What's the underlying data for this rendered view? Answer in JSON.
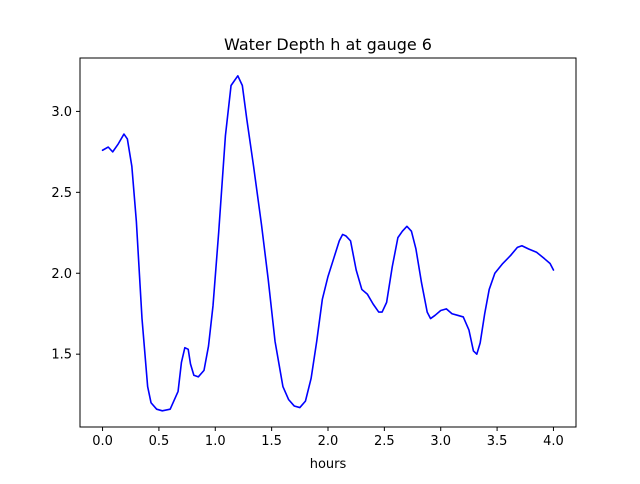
{
  "chart_data": {
    "type": "line",
    "title": "Water Depth h at gauge 6",
    "xlabel": "hours",
    "ylabel": "",
    "xlim": [
      -0.2,
      4.2
    ],
    "ylim": [
      1.05,
      3.33
    ],
    "xticks": [
      0.0,
      0.5,
      1.0,
      1.5,
      2.0,
      2.5,
      3.0,
      3.5,
      4.0
    ],
    "xtick_labels": [
      "0.0",
      "0.5",
      "1.0",
      "1.5",
      "2.0",
      "2.5",
      "3.0",
      "3.5",
      "4.0"
    ],
    "yticks": [
      1.5,
      2.0,
      2.5,
      3.0
    ],
    "ytick_labels": [
      "1.5",
      "2.0",
      "2.5",
      "3.0"
    ],
    "grid": false,
    "series": [
      {
        "color": "#0000ff",
        "x": [
          0.0,
          0.05,
          0.09,
          0.14,
          0.19,
          0.22,
          0.26,
          0.3,
          0.35,
          0.4,
          0.43,
          0.48,
          0.53,
          0.6,
          0.67,
          0.7,
          0.73,
          0.76,
          0.78,
          0.81,
          0.85,
          0.9,
          0.94,
          0.98,
          1.03,
          1.09,
          1.14,
          1.2,
          1.24,
          1.28,
          1.34,
          1.41,
          1.47,
          1.53,
          1.6,
          1.65,
          1.7,
          1.75,
          1.8,
          1.85,
          1.9,
          1.95,
          2.0,
          2.05,
          2.1,
          2.13,
          2.16,
          2.2,
          2.25,
          2.3,
          2.35,
          2.4,
          2.45,
          2.48,
          2.52,
          2.57,
          2.62,
          2.66,
          2.7,
          2.74,
          2.78,
          2.83,
          2.88,
          2.91,
          2.95,
          3.0,
          3.05,
          3.1,
          3.15,
          3.2,
          3.25,
          3.29,
          3.32,
          3.35,
          3.39,
          3.43,
          3.48,
          3.55,
          3.62,
          3.68,
          3.72,
          3.78,
          3.85,
          3.92,
          3.97,
          4.0
        ],
        "y": [
          2.76,
          2.78,
          2.75,
          2.8,
          2.86,
          2.83,
          2.66,
          2.32,
          1.72,
          1.3,
          1.2,
          1.16,
          1.15,
          1.16,
          1.27,
          1.45,
          1.54,
          1.53,
          1.44,
          1.37,
          1.36,
          1.4,
          1.55,
          1.8,
          2.25,
          2.85,
          3.16,
          3.22,
          3.16,
          2.95,
          2.66,
          2.3,
          1.96,
          1.58,
          1.3,
          1.22,
          1.18,
          1.17,
          1.21,
          1.35,
          1.58,
          1.84,
          1.98,
          2.09,
          2.2,
          2.24,
          2.23,
          2.2,
          2.02,
          1.9,
          1.87,
          1.81,
          1.76,
          1.76,
          1.82,
          2.04,
          2.22,
          2.26,
          2.29,
          2.26,
          2.15,
          1.94,
          1.76,
          1.72,
          1.74,
          1.77,
          1.78,
          1.75,
          1.74,
          1.73,
          1.65,
          1.52,
          1.5,
          1.57,
          1.75,
          1.9,
          2.0,
          2.06,
          2.11,
          2.16,
          2.17,
          2.15,
          2.13,
          2.09,
          2.06,
          2.02
        ]
      }
    ]
  }
}
